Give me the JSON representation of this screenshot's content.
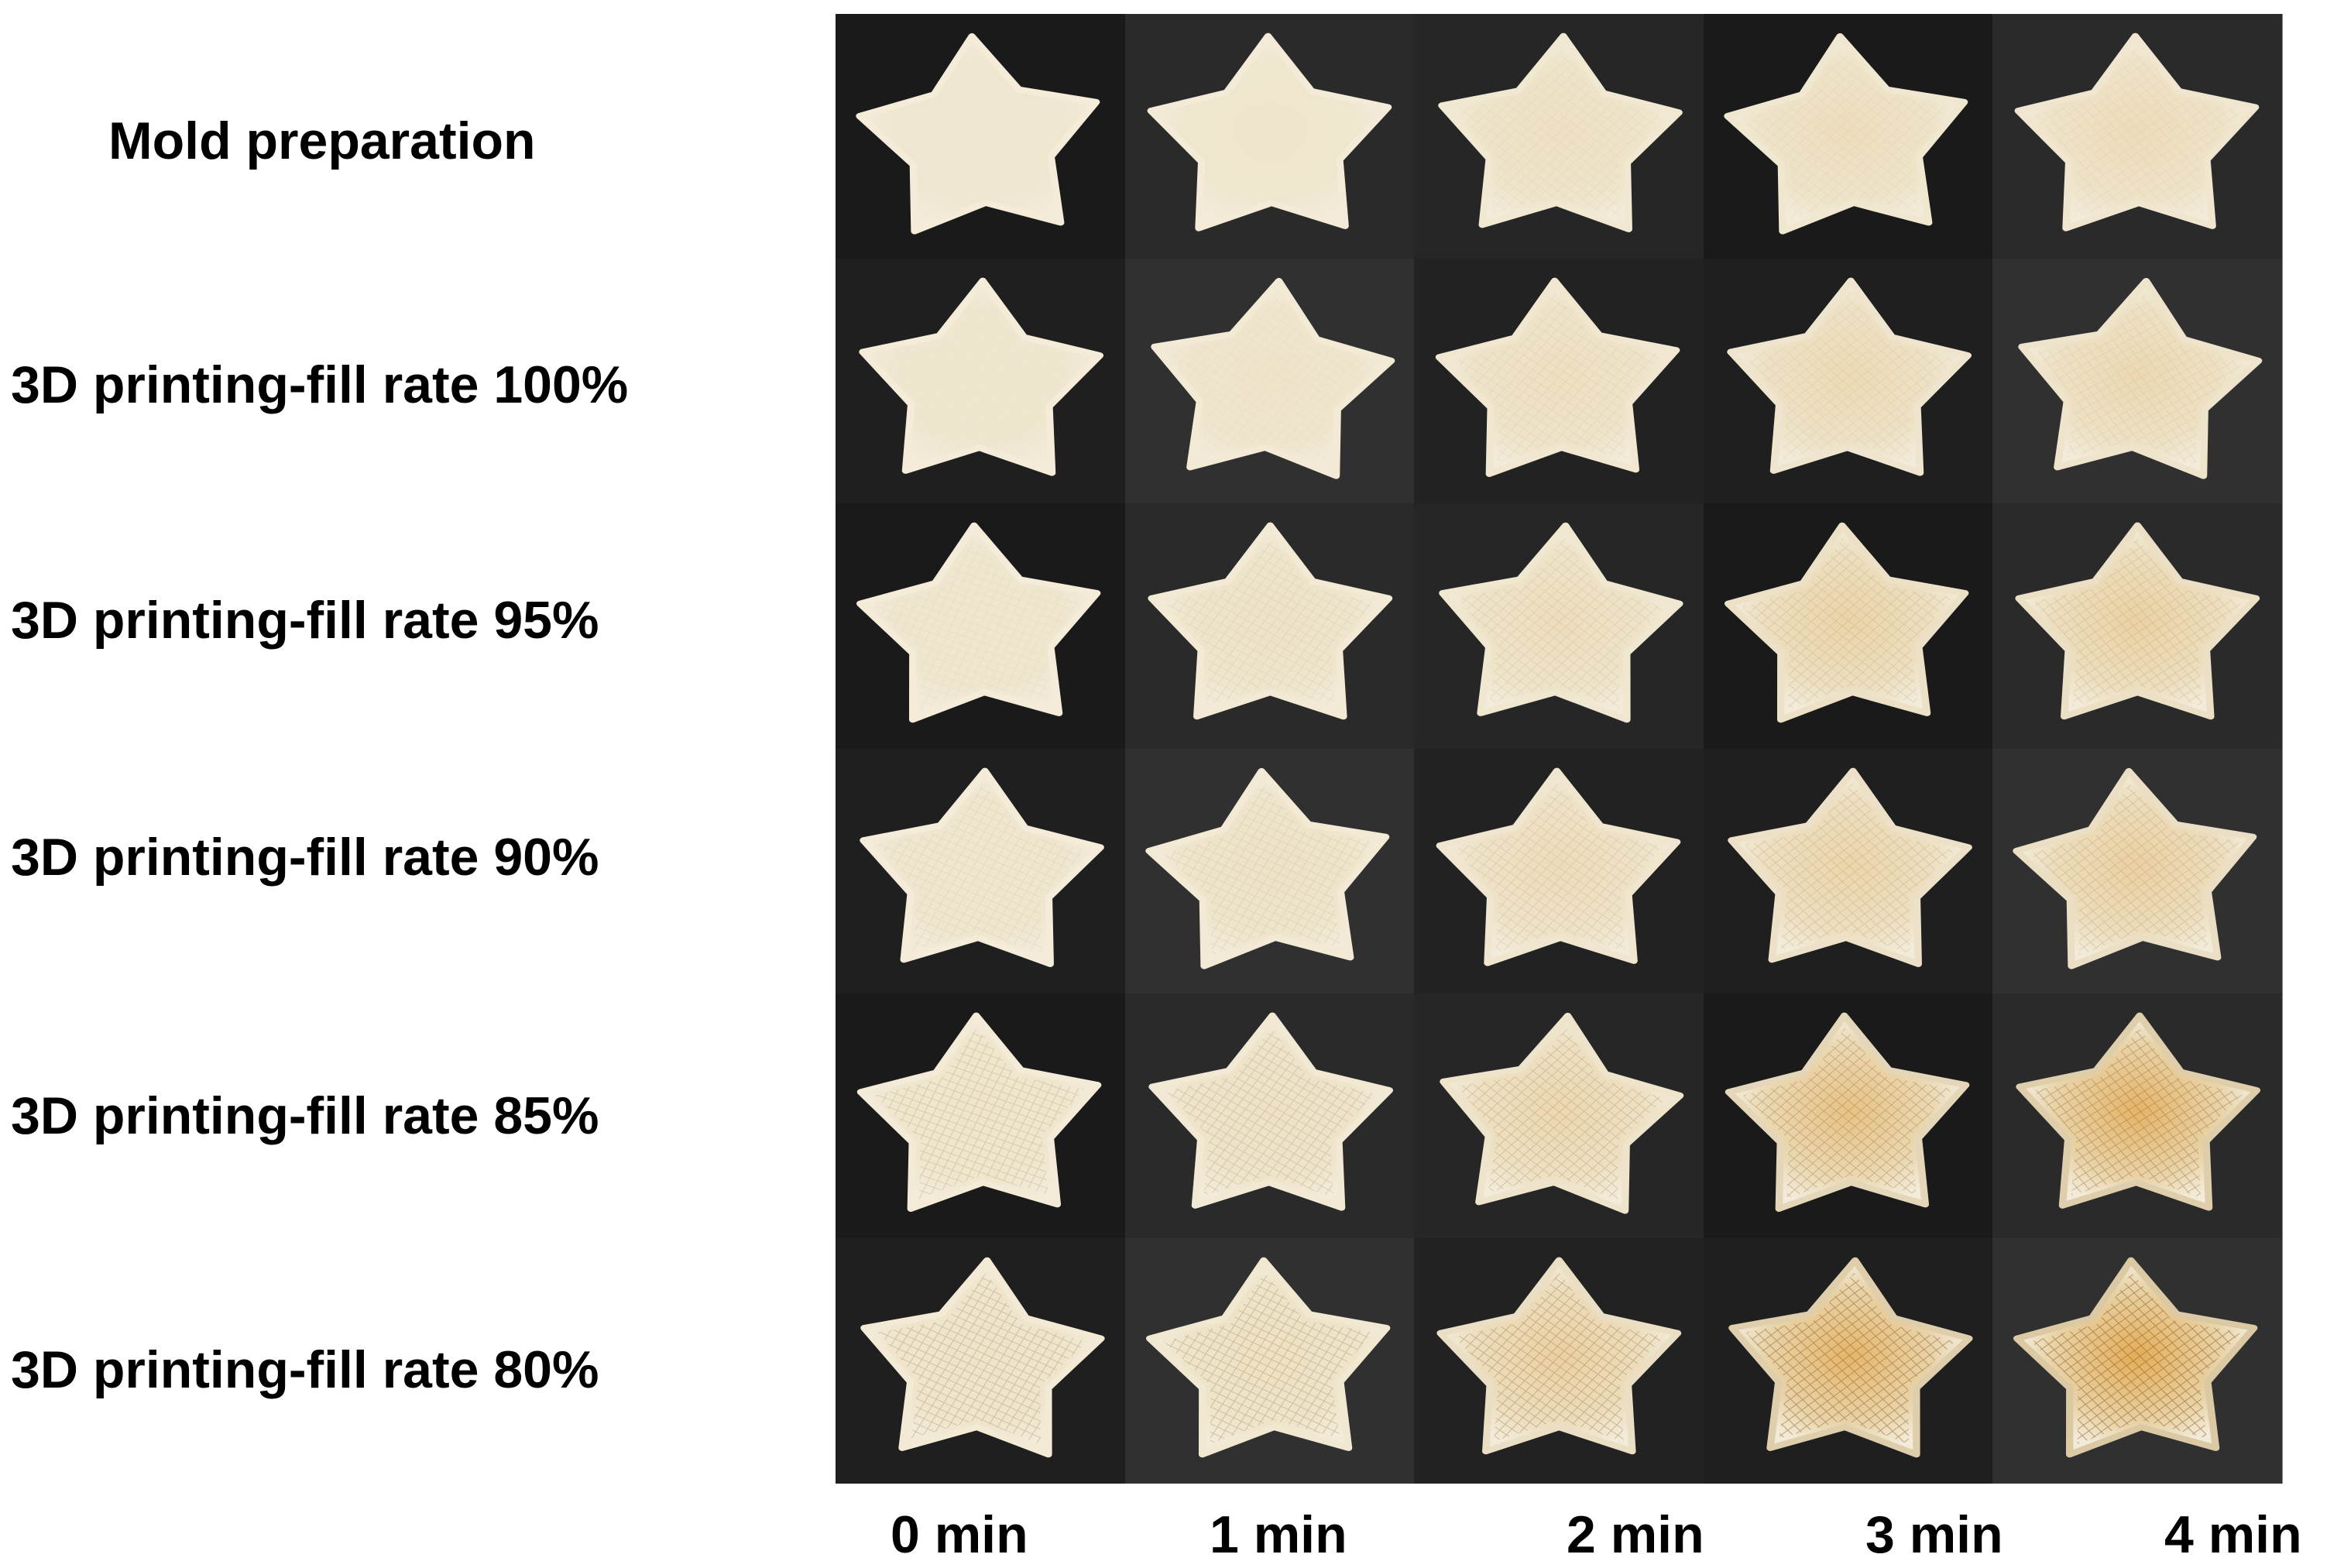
{
  "row_labels": [
    "Mold preparation",
    "3D printing-fill rate 100%",
    "3D printing-fill rate 95%",
    "3D printing-fill rate 90%",
    "3D printing-fill rate 85%",
    "3D printing-fill rate 80%"
  ],
  "column_labels": [
    "0 min",
    "1 min",
    "2 min",
    "3 min",
    "4 min"
  ],
  "colors": {
    "page_background": "#ffffff",
    "photo_background_dark": "#1c1c1c",
    "dough_raw": "#efe6cf",
    "dough_toasted": "#e3a84e",
    "text": "#000000"
  },
  "grid": {
    "rows": 6,
    "columns": 5,
    "subject": "star-shaped dough sample",
    "browning": [
      [
        0.0,
        0.02,
        0.1,
        0.14,
        0.16
      ],
      [
        0.0,
        0.04,
        0.12,
        0.2,
        0.22
      ],
      [
        0.0,
        0.06,
        0.14,
        0.3,
        0.34
      ],
      [
        0.0,
        0.06,
        0.16,
        0.28,
        0.36
      ],
      [
        0.02,
        0.08,
        0.24,
        0.58,
        0.8
      ],
      [
        0.04,
        0.1,
        0.36,
        0.78,
        0.92
      ]
    ],
    "print_texture": [
      [
        0.0,
        0.0,
        0.15,
        0.15,
        0.15
      ],
      [
        0.05,
        0.1,
        0.2,
        0.2,
        0.2
      ],
      [
        0.15,
        0.25,
        0.3,
        0.35,
        0.35
      ],
      [
        0.25,
        0.3,
        0.35,
        0.4,
        0.4
      ],
      [
        0.55,
        0.55,
        0.55,
        0.6,
        0.6
      ],
      [
        0.75,
        0.75,
        0.75,
        0.8,
        0.8
      ]
    ]
  }
}
